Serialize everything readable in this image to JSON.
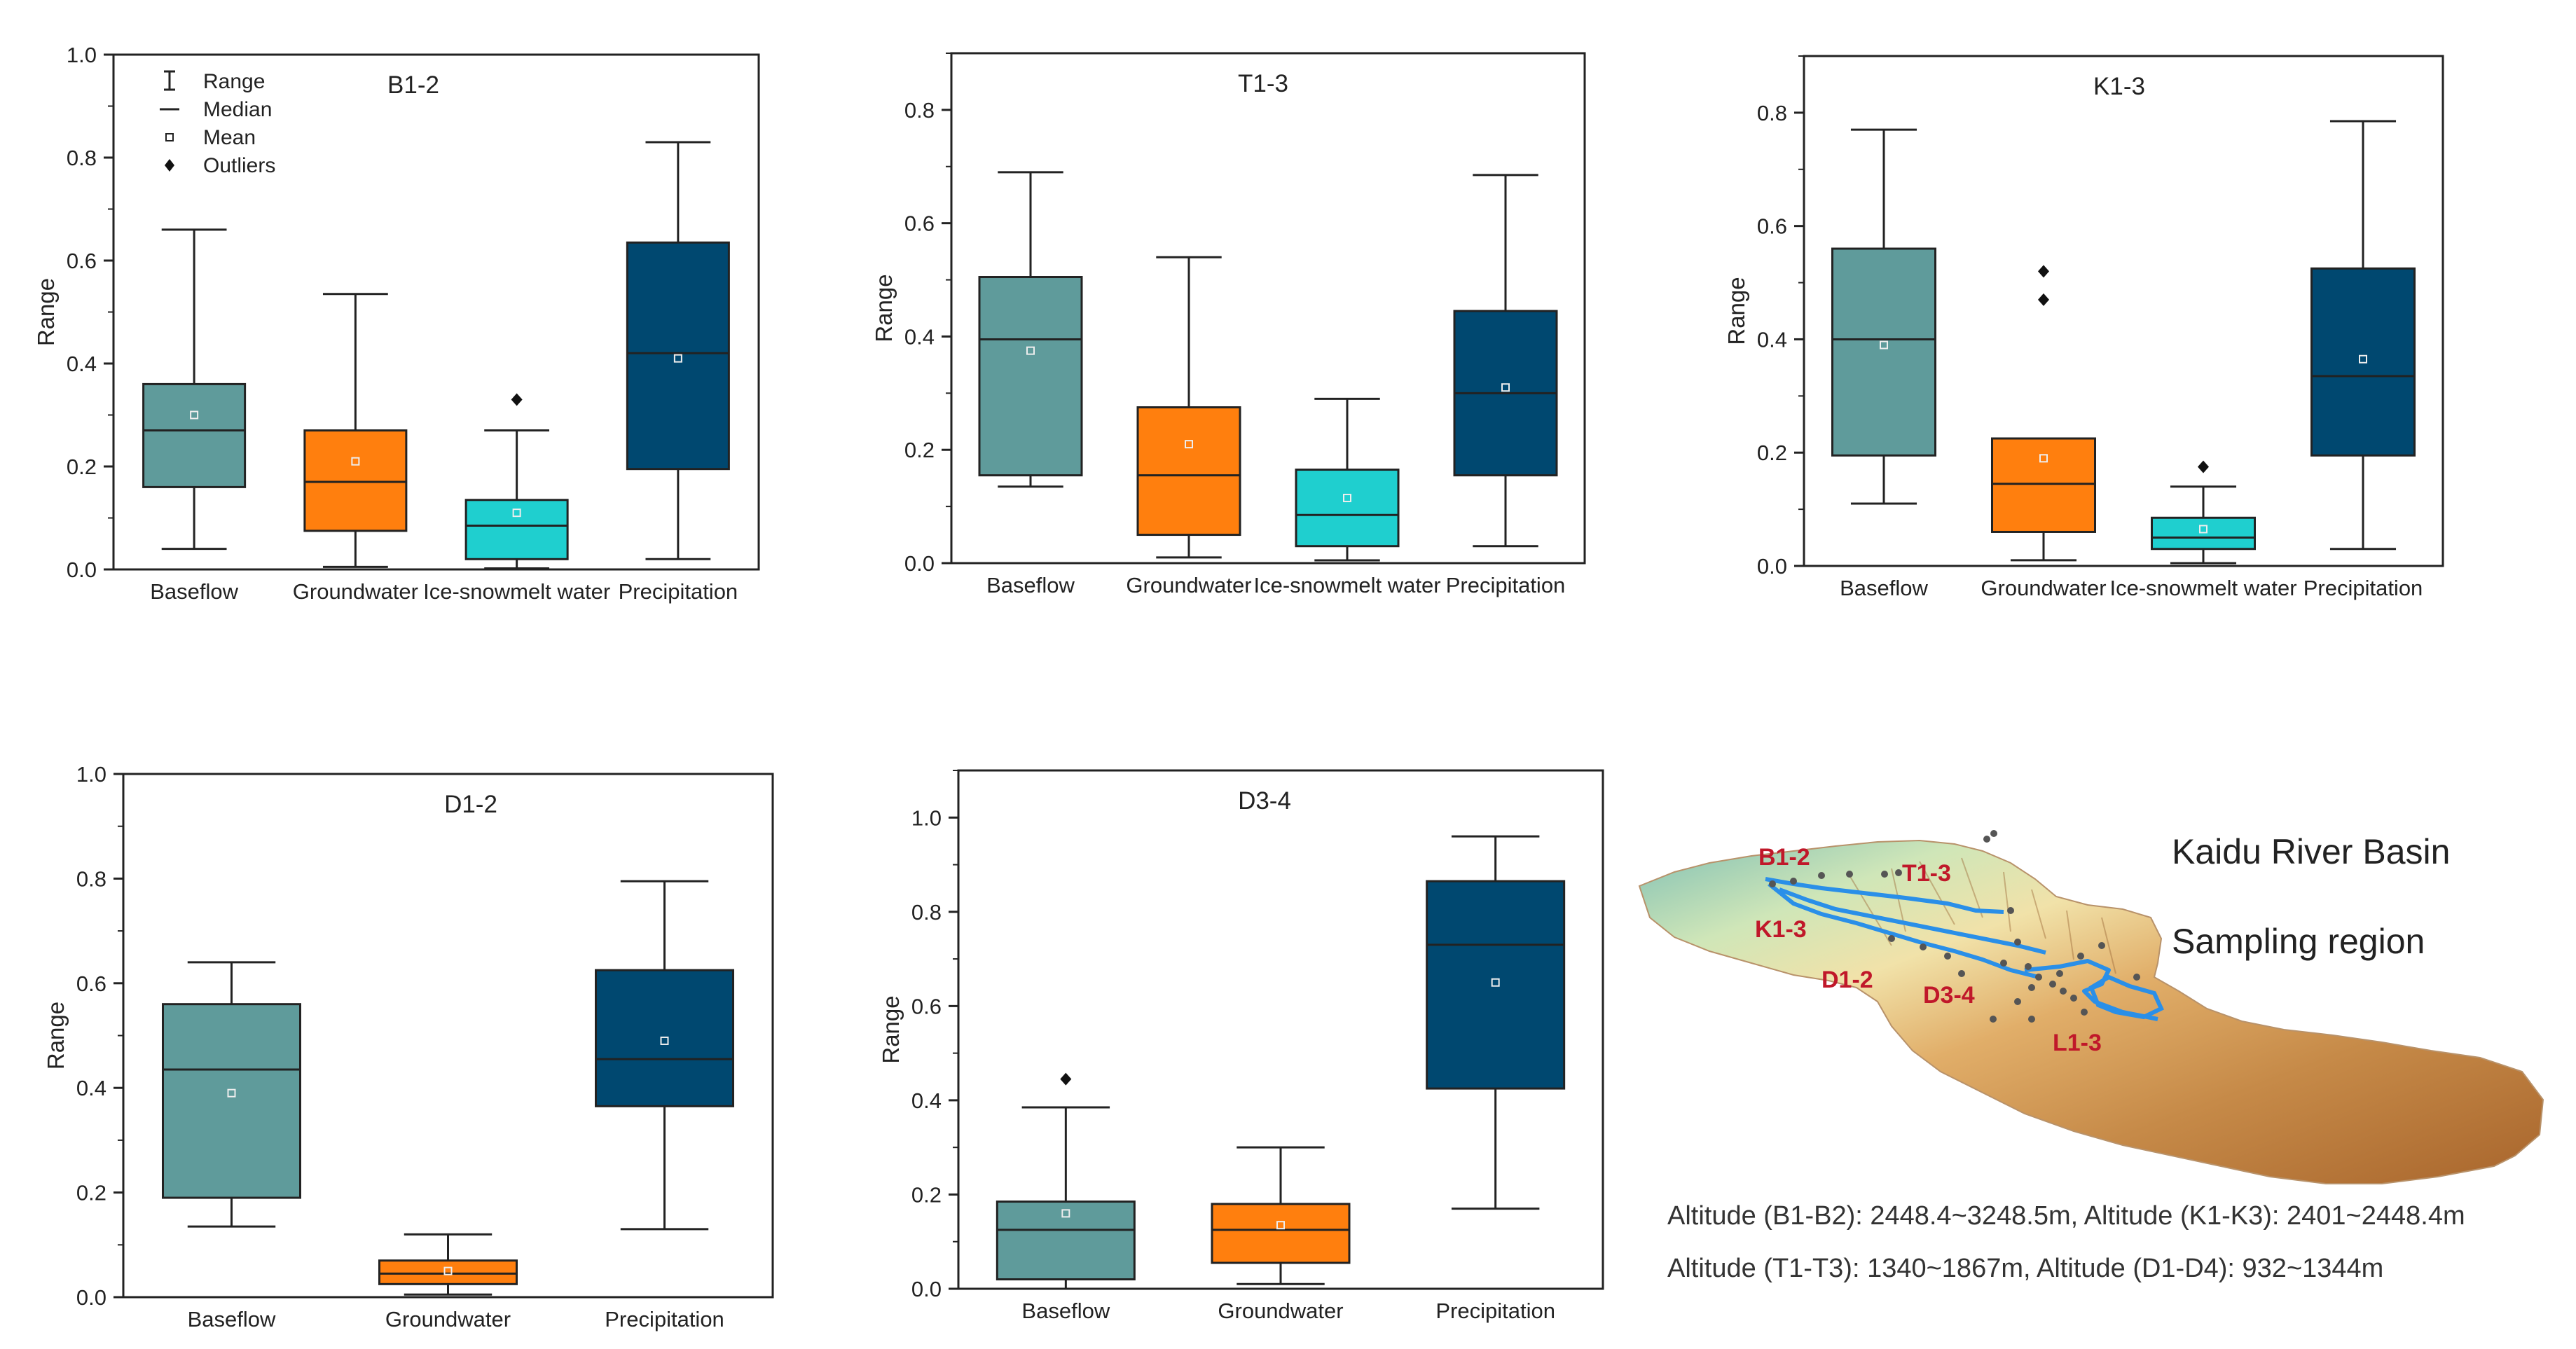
{
  "chart_data": [
    {
      "type": "box",
      "title": "B1-2",
      "ylabel": "Range",
      "ylim": [
        0,
        1.0
      ],
      "yticks": [
        "0.0",
        "0.2",
        "0.4",
        "0.6",
        "0.8",
        "1.0"
      ],
      "legend": {
        "items": [
          "Range",
          "Median",
          "Mean",
          "Outliers"
        ],
        "position": "top-left"
      },
      "boxes": [
        {
          "category": "Baseflow",
          "color": "#5f9b9b",
          "min": 0.04,
          "q1": 0.16,
          "median": 0.27,
          "q3": 0.36,
          "max": 0.66,
          "mean": 0.3,
          "outliers": []
        },
        {
          "category": "Groundwater",
          "color": "#ff7f0e",
          "min": 0.005,
          "q1": 0.075,
          "median": 0.17,
          "q3": 0.27,
          "max": 0.535,
          "mean": 0.21,
          "outliers": []
        },
        {
          "category": "Ice-snowmelt water",
          "color": "#1fcfcf",
          "min": 0.002,
          "q1": 0.02,
          "median": 0.085,
          "q3": 0.135,
          "max": 0.27,
          "mean": 0.11,
          "outliers": [
            0.33
          ]
        },
        {
          "category": "Precipitation",
          "color": "#004870",
          "min": 0.02,
          "q1": 0.195,
          "median": 0.42,
          "q3": 0.635,
          "max": 0.83,
          "mean": 0.41,
          "outliers": []
        }
      ]
    },
    {
      "type": "box",
      "title": "T1-3",
      "ylabel": "Range",
      "ylim": [
        0,
        0.9
      ],
      "yticks": [
        "0.0",
        "0.2",
        "0.4",
        "0.6",
        "0.8"
      ],
      "boxes": [
        {
          "category": "Baseflow",
          "color": "#5f9b9b",
          "min": 0.135,
          "q1": 0.155,
          "median": 0.395,
          "q3": 0.505,
          "max": 0.69,
          "mean": 0.375,
          "outliers": []
        },
        {
          "category": "Groundwater",
          "color": "#ff7f0e",
          "min": 0.01,
          "q1": 0.05,
          "median": 0.155,
          "q3": 0.275,
          "max": 0.54,
          "mean": 0.21,
          "outliers": []
        },
        {
          "category": "Ice-snowmelt water",
          "color": "#1fcfcf",
          "min": 0.005,
          "q1": 0.03,
          "median": 0.085,
          "q3": 0.165,
          "max": 0.29,
          "mean": 0.115,
          "outliers": []
        },
        {
          "category": "Precipitation",
          "color": "#004870",
          "min": 0.03,
          "q1": 0.155,
          "median": 0.3,
          "q3": 0.445,
          "max": 0.685,
          "mean": 0.31,
          "outliers": []
        }
      ]
    },
    {
      "type": "box",
      "title": "K1-3",
      "ylabel": "Range",
      "ylim": [
        0,
        0.9
      ],
      "yticks": [
        "0.0",
        "0.2",
        "0.4",
        "0.6",
        "0.8"
      ],
      "boxes": [
        {
          "category": "Baseflow",
          "color": "#5f9b9b",
          "min": 0.11,
          "q1": 0.195,
          "median": 0.4,
          "q3": 0.56,
          "max": 0.77,
          "mean": 0.39,
          "outliers": []
        },
        {
          "category": "Groundwater",
          "color": "#ff7f0e",
          "min": 0.01,
          "q1": 0.06,
          "median": 0.145,
          "q3": 0.225,
          "max": 0.225,
          "mean": 0.19,
          "outliers": [
            0.47,
            0.52
          ]
        },
        {
          "category": "Ice-snowmelt water",
          "color": "#1fcfcf",
          "min": 0.005,
          "q1": 0.03,
          "median": 0.05,
          "q3": 0.085,
          "max": 0.14,
          "mean": 0.065,
          "outliers": [
            0.175
          ]
        },
        {
          "category": "Precipitation",
          "color": "#004870",
          "min": 0.03,
          "q1": 0.195,
          "median": 0.335,
          "q3": 0.525,
          "max": 0.785,
          "mean": 0.365,
          "outliers": []
        }
      ]
    },
    {
      "type": "box",
      "title": "D1-2",
      "ylabel": "Range",
      "ylim": [
        0,
        1.0
      ],
      "yticks": [
        "0.0",
        "0.2",
        "0.4",
        "0.6",
        "0.8",
        "1.0"
      ],
      "boxes": [
        {
          "category": "Baseflow",
          "color": "#5f9b9b",
          "min": 0.135,
          "q1": 0.19,
          "median": 0.435,
          "q3": 0.56,
          "max": 0.64,
          "mean": 0.39,
          "outliers": []
        },
        {
          "category": "Groundwater",
          "color": "#ff7f0e",
          "min": 0.005,
          "q1": 0.025,
          "median": 0.045,
          "q3": 0.07,
          "max": 0.12,
          "mean": 0.05,
          "outliers": []
        },
        {
          "category": "Precipitation",
          "color": "#004870",
          "min": 0.13,
          "q1": 0.365,
          "median": 0.455,
          "q3": 0.625,
          "max": 0.795,
          "mean": 0.49,
          "outliers": []
        }
      ]
    },
    {
      "type": "box",
      "title": "D3-4",
      "ylabel": "Range",
      "ylim": [
        0,
        1.1
      ],
      "yticks": [
        "0.0",
        "0.2",
        "0.4",
        "0.6",
        "0.8",
        "1.0"
      ],
      "boxes": [
        {
          "category": "Baseflow",
          "color": "#5f9b9b",
          "min": 0.0,
          "q1": 0.02,
          "median": 0.125,
          "q3": 0.185,
          "max": 0.385,
          "mean": 0.16,
          "outliers": [
            0.445
          ]
        },
        {
          "category": "Groundwater",
          "color": "#ff7f0e",
          "min": 0.01,
          "q1": 0.055,
          "median": 0.125,
          "q3": 0.18,
          "max": 0.3,
          "mean": 0.135,
          "outliers": []
        },
        {
          "category": "Precipitation",
          "color": "#004870",
          "min": 0.17,
          "q1": 0.425,
          "median": 0.73,
          "q3": 0.865,
          "max": 0.96,
          "mean": 0.65,
          "outliers": []
        }
      ]
    }
  ],
  "map": {
    "title_line1": "Kaidu River Basin",
    "title_line2": "Sampling region",
    "labels": [
      "B1-2",
      "T1-3",
      "K1-3",
      "D1-2",
      "D3-4",
      "L1-3"
    ],
    "altitude_line1": "Altitude (B1-B2): 2448.4~3248.5m, Altitude (K1-K3): 2401~2448.4m",
    "altitude_line2": "Altitude (T1-T3): 1340~1867m, Altitude (D1-D4): 932~1344m"
  }
}
